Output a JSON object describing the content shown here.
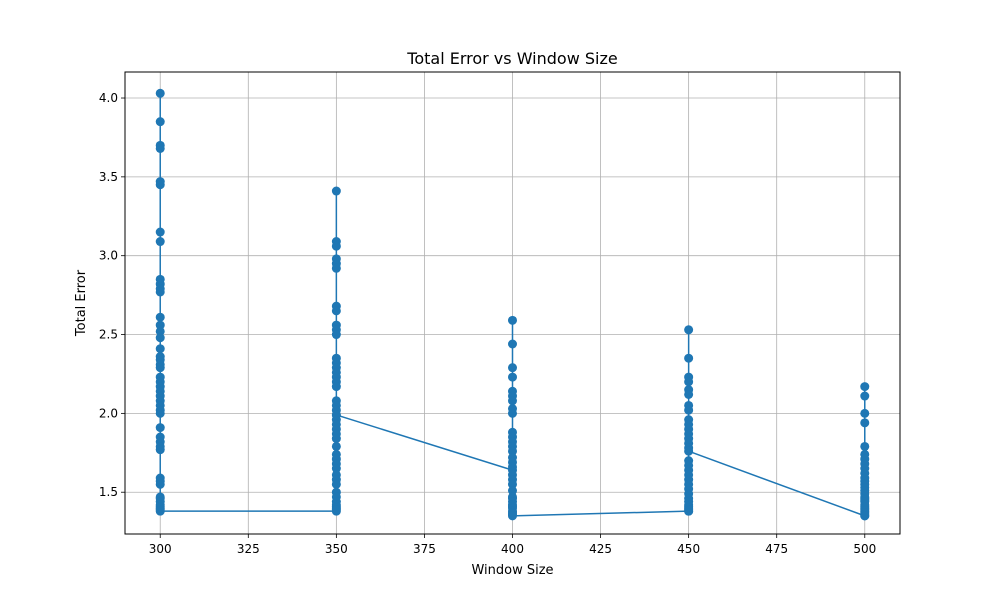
{
  "chart_data": {
    "type": "line",
    "title": "Total Error vs Window Size",
    "xlabel": "Window Size",
    "ylabel": "Total Error",
    "xlim": [
      290,
      510
    ],
    "ylim": [
      1.235,
      4.165
    ],
    "x_ticks": [
      300,
      325,
      350,
      375,
      400,
      425,
      450,
      475,
      500
    ],
    "y_ticks": [
      1.5,
      2.0,
      2.5,
      3.0,
      3.5,
      4.0
    ],
    "grid": true,
    "legend": "none",
    "color": "#1f77b4",
    "series": [
      {
        "x": [
          300,
          300,
          300,
          300,
          300,
          300,
          300,
          300,
          300,
          300,
          300,
          300,
          300,
          300,
          300,
          300,
          300,
          300,
          300,
          300,
          300,
          300,
          300,
          300,
          300,
          300,
          300,
          300,
          300,
          300,
          300,
          300,
          300,
          300,
          300,
          300,
          300,
          300,
          300,
          300,
          300,
          300,
          300,
          300,
          300,
          300,
          350,
          350,
          350,
          350,
          350,
          350,
          350,
          350,
          350,
          350,
          350,
          350,
          350,
          350,
          350,
          350,
          350,
          350,
          350,
          350,
          350,
          350,
          350,
          350,
          350,
          350,
          350,
          350,
          350,
          350,
          350,
          350,
          350,
          350,
          350,
          350,
          350,
          350,
          350,
          350,
          350,
          350,
          350,
          350,
          400,
          400,
          400,
          400,
          400,
          400,
          400,
          400,
          400,
          400,
          400,
          400,
          400,
          400,
          400,
          400,
          400,
          400,
          400,
          400,
          400,
          400,
          400,
          400,
          400,
          400,
          400,
          400,
          400,
          400,
          400,
          400,
          450,
          450,
          450,
          450,
          450,
          450,
          450,
          450,
          450,
          450,
          450,
          450,
          450,
          450,
          450,
          450,
          450,
          450,
          450,
          450,
          450,
          450,
          450,
          450,
          450,
          450,
          450,
          450,
          450,
          450,
          450,
          450,
          500,
          500,
          500,
          500,
          500,
          500,
          500,
          500,
          500,
          500,
          500,
          500,
          500,
          500,
          500,
          500,
          500,
          500,
          500,
          500,
          500,
          500,
          500,
          500,
          500,
          500,
          500,
          500,
          500
        ],
        "y": [
          2.34,
          4.03,
          3.85,
          3.7,
          3.68,
          3.47,
          3.45,
          3.15,
          3.09,
          2.85,
          2.82,
          2.79,
          2.77,
          2.61,
          2.56,
          2.52,
          2.48,
          2.41,
          2.36,
          2.31,
          2.29,
          2.23,
          2.2,
          2.17,
          2.14,
          2.11,
          2.08,
          2.05,
          2.02,
          2.0,
          1.91,
          1.85,
          1.82,
          1.79,
          1.77,
          1.59,
          1.57,
          1.55,
          1.47,
          1.46,
          1.44,
          1.42,
          1.41,
          1.4,
          1.39,
          1.38,
          1.38,
          3.41,
          3.09,
          3.06,
          2.98,
          2.95,
          2.92,
          2.68,
          2.65,
          2.56,
          2.53,
          2.5,
          2.35,
          2.32,
          2.29,
          2.26,
          2.23,
          2.2,
          2.17,
          2.08,
          2.05,
          2.02,
          1.99,
          1.96,
          1.93,
          1.9,
          1.87,
          1.84,
          1.79,
          1.74,
          1.71,
          1.68,
          1.65,
          1.61,
          1.58,
          1.55,
          1.5,
          1.47,
          1.44,
          1.42,
          1.41,
          1.4,
          1.39,
          1.99,
          1.64,
          2.59,
          2.44,
          2.29,
          2.23,
          2.14,
          2.11,
          2.08,
          2.03,
          2.0,
          1.88,
          1.85,
          1.82,
          1.79,
          1.76,
          1.72,
          1.69,
          1.66,
          1.61,
          1.58,
          1.55,
          1.51,
          1.47,
          1.46,
          1.44,
          1.42,
          1.41,
          1.4,
          1.38,
          1.37,
          1.36,
          1.35,
          1.38,
          2.53,
          2.35,
          2.23,
          2.2,
          2.15,
          2.12,
          2.05,
          2.02,
          1.96,
          1.93,
          1.9,
          1.87,
          1.84,
          1.81,
          1.78,
          1.7,
          1.67,
          1.64,
          1.61,
          1.58,
          1.55,
          1.52,
          1.49,
          1.46,
          1.44,
          1.42,
          1.41,
          1.4,
          1.39,
          1.38,
          1.76,
          1.35,
          2.17,
          2.11,
          2.0,
          1.94,
          1.79,
          1.74,
          1.71,
          1.68,
          1.65,
          1.62,
          1.59,
          1.57,
          1.55,
          1.53,
          1.51,
          1.49,
          1.47,
          1.46,
          1.45,
          1.44,
          1.42,
          1.41,
          1.4,
          1.39,
          1.38,
          1.37,
          1.36,
          1.35
        ]
      }
    ]
  }
}
